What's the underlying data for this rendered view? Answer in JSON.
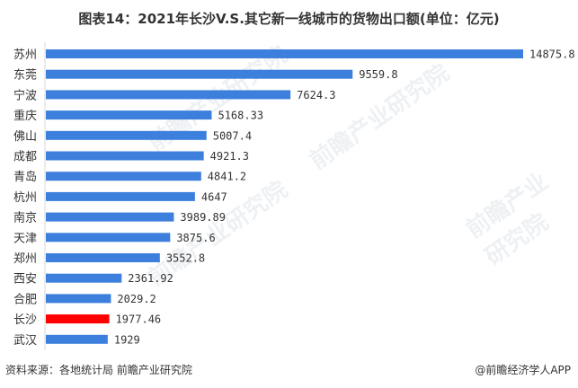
{
  "title": "图表14：2021年长沙V.S.其它新一线城市的货物出口额(单位：亿元)",
  "footer": {
    "source": "资料来源：各地统计局 前瞻产业研究院",
    "credit": "@前瞻经济学人APP"
  },
  "watermark": "前瞻产业研究院",
  "colors": {
    "bar": "#3d7fdc",
    "highlight": "#ff0000",
    "axis": "#d9d9d9"
  },
  "chart_data": {
    "type": "bar",
    "orientation": "horizontal",
    "title": "图表14：2021年长沙V.S.其它新一线城市的货物出口额(单位：亿元)",
    "xlabel": "",
    "ylabel": "",
    "unit": "亿元",
    "xlim": [
      0,
      14875.8
    ],
    "grid": false,
    "legend": "none",
    "highlight_category": "长沙",
    "categories": [
      "苏州",
      "东莞",
      "宁波",
      "重庆",
      "佛山",
      "成都",
      "青岛",
      "杭州",
      "南京",
      "天津",
      "郑州",
      "西安",
      "合肥",
      "长沙",
      "武汉"
    ],
    "values": [
      14875.8,
      9559.8,
      7624.3,
      5168.33,
      5007.4,
      4921.3,
      4841.2,
      4647,
      3989.89,
      3875.6,
      3552.8,
      2361.92,
      2029.2,
      1977.46,
      1929
    ],
    "value_labels": [
      "14875.8",
      "9559.8",
      "7624.3",
      "5168.33",
      "5007.4",
      "4921.3",
      "4841.2",
      "4647",
      "3989.89",
      "3875.6",
      "3552.8",
      "2361.92",
      "2029.2",
      "1977.46",
      "1929"
    ]
  }
}
